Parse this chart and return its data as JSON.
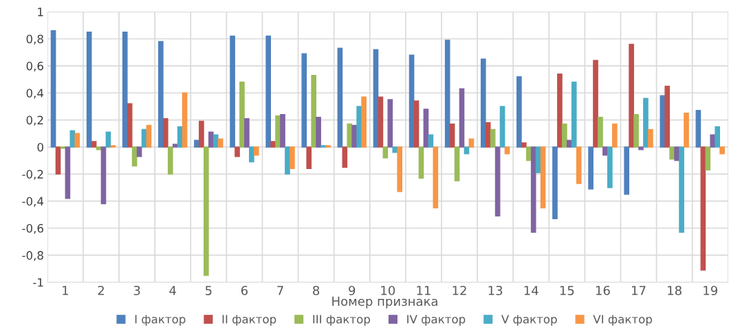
{
  "chart_data": {
    "type": "bar",
    "xlabel": "Номер признака",
    "categories": [
      "1",
      "2",
      "3",
      "4",
      "5",
      "6",
      "7",
      "8",
      "9",
      "10",
      "11",
      "12",
      "13",
      "14",
      "15",
      "16",
      "17",
      "18",
      "19"
    ],
    "series": [
      {
        "name": "I фактор",
        "color": "#4f81bd",
        "values": [
          0.86,
          0.85,
          0.85,
          0.78,
          0.05,
          0.82,
          0.82,
          0.69,
          0.73,
          0.72,
          0.68,
          0.79,
          0.65,
          0.52,
          -0.53,
          -0.31,
          -0.35,
          0.38,
          0.27
        ]
      },
      {
        "name": "II фактор",
        "color": "#c0504d",
        "values": [
          -0.2,
          0.04,
          0.32,
          0.21,
          0.19,
          -0.07,
          0.04,
          -0.16,
          -0.15,
          0.37,
          0.34,
          0.17,
          0.18,
          0.03,
          0.54,
          0.64,
          0.76,
          0.45,
          -0.91
        ]
      },
      {
        "name": "III фактор",
        "color": "#9bbb59",
        "values": [
          -0.01,
          -0.02,
          -0.14,
          -0.2,
          -0.95,
          0.48,
          0.23,
          0.53,
          0.17,
          -0.08,
          -0.23,
          -0.25,
          0.13,
          -0.1,
          0.17,
          0.22,
          0.24,
          -0.09,
          -0.17
        ]
      },
      {
        "name": "IV фактор",
        "color": "#8064a2",
        "values": [
          -0.38,
          -0.42,
          -0.07,
          0.02,
          0.11,
          0.21,
          0.24,
          0.22,
          0.16,
          0.35,
          0.28,
          0.43,
          -0.51,
          -0.63,
          0.05,
          -0.06,
          -0.02,
          -0.1,
          0.09
        ]
      },
      {
        "name": "V фактор",
        "color": "#4bacc6",
        "values": [
          0.12,
          0.11,
          0.13,
          0.15,
          0.09,
          -0.11,
          -0.2,
          0.01,
          0.3,
          -0.04,
          0.09,
          -0.05,
          0.3,
          -0.19,
          0.48,
          -0.3,
          0.36,
          -0.63,
          0.15
        ]
      },
      {
        "name": "VI фактор",
        "color": "#f79646",
        "values": [
          0.1,
          0.01,
          0.16,
          0.4,
          0.06,
          -0.06,
          -0.16,
          0.01,
          0.37,
          -0.33,
          -0.45,
          0.06,
          -0.05,
          -0.45,
          -0.27,
          0.17,
          0.13,
          0.25,
          -0.05
        ]
      }
    ],
    "ylim": [
      -1,
      1
    ],
    "yticks": [
      {
        "value": -1,
        "label": "-1"
      },
      {
        "value": -0.8,
        "label": "-0,8"
      },
      {
        "value": -0.6,
        "label": "-0,6"
      },
      {
        "value": -0.4,
        "label": "-0,4"
      },
      {
        "value": -0.2,
        "label": "-0,2"
      },
      0,
      {
        "value": 0.2,
        "label": "0,2"
      },
      {
        "value": 0.4,
        "label": "0,4"
      },
      {
        "value": 0.6,
        "label": "0,6"
      },
      {
        "value": 0.8,
        "label": "0,8"
      },
      1
    ],
    "grid": true,
    "legend": "bottom"
  }
}
